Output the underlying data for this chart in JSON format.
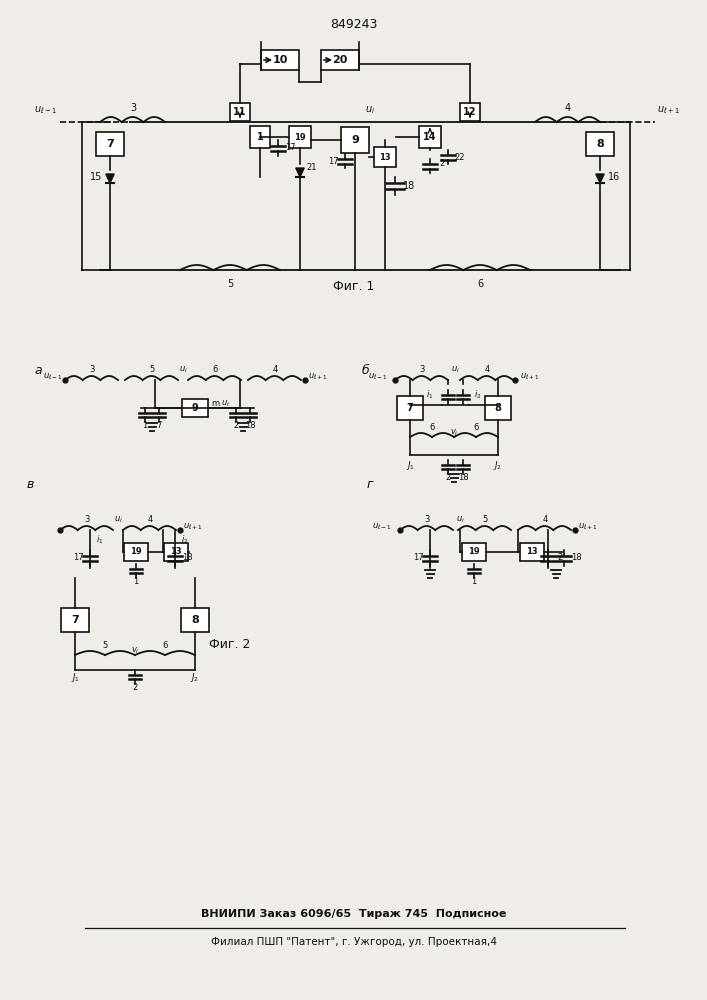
{
  "title": "849243",
  "footer_line1": "ВНИИПИ Заказ 6096/65  Тираж 745  Подписное",
  "footer_line2": "Филиал ПШП \"Патент\", г. Ужгород, ул. Проектная,4",
  "bg_color": "#f0ede8",
  "line_color": "#111111",
  "box_color": "#ffffff"
}
